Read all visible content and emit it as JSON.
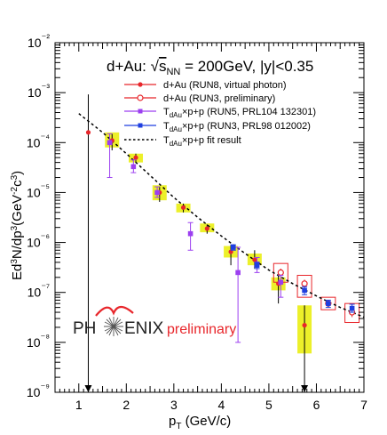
{
  "chart_data": {
    "type": "scatter",
    "title": "d+Au: √s_NN = 200GeV, |y|<0.35",
    "xlabel": "p_T (GeV/c)",
    "ylabel": "Ed³N/dp³(GeV⁻²c³)",
    "xlim": [
      0.5,
      7.0
    ],
    "ylim": [
      1e-09,
      0.01
    ],
    "yscale": "log",
    "x_ticks": [
      "1",
      "2",
      "3",
      "4",
      "5",
      "6",
      "7"
    ],
    "y_ticks": [
      "10⁻⁹",
      "10⁻⁸",
      "10⁻⁷",
      "10⁻⁶",
      "10⁻⁵",
      "10⁻⁴",
      "10⁻³",
      "10⁻²"
    ],
    "legend_position": "top-right",
    "series": [
      {
        "name": "d+Au (RUN8, virtual photon)",
        "color": "#e8262b",
        "marker": "filled-circle",
        "points": [
          {
            "x": 1.2,
            "y": 0.00016,
            "ylow": 1e-09,
            "yhigh": 0.00092,
            "upper_limit": true
          },
          {
            "x": 1.7,
            "y": 0.00011,
            "ylow": 7e-05,
            "yhigh": 0.00015
          },
          {
            "x": 2.2,
            "y": 5e-05,
            "ylow": 4e-05,
            "yhigh": 6e-05
          },
          {
            "x": 2.7,
            "y": 1e-05,
            "ylow": 6.5e-06,
            "yhigh": 1.3e-05
          },
          {
            "x": 3.2,
            "y": 5e-06,
            "ylow": 4e-06,
            "yhigh": 6e-06
          },
          {
            "x": 3.7,
            "y": 1.9e-06,
            "ylow": 1.5e-06,
            "yhigh": 2.3e-06
          },
          {
            "x": 4.2,
            "y": 6.5e-07,
            "ylow": 3.5e-07,
            "yhigh": 9e-07
          },
          {
            "x": 4.7,
            "y": 4.5e-07,
            "ylow": 3e-07,
            "yhigh": 7e-07
          },
          {
            "x": 5.2,
            "y": 1.5e-07,
            "ylow": 6e-08,
            "yhigh": 2.2e-07
          },
          {
            "x": 5.75,
            "y": 2.2e-08,
            "ylow": 1e-09,
            "yhigh": 5.5e-08,
            "upper_limit": true
          }
        ],
        "syst_boxes": [
          {
            "x": 1.7,
            "ylow": 8e-05,
            "yhigh": 0.00016
          },
          {
            "x": 2.2,
            "ylow": 4e-05,
            "yhigh": 6e-05
          },
          {
            "x": 2.7,
            "ylow": 7e-06,
            "yhigh": 1.4e-05
          },
          {
            "x": 3.2,
            "ylow": 4e-06,
            "yhigh": 6e-06
          },
          {
            "x": 3.7,
            "ylow": 1.6e-06,
            "yhigh": 2.4e-06
          },
          {
            "x": 4.2,
            "ylow": 5e-07,
            "yhigh": 8.5e-07
          },
          {
            "x": 4.7,
            "ylow": 3.5e-07,
            "yhigh": 6e-07
          },
          {
            "x": 5.2,
            "ylow": 1.1e-07,
            "yhigh": 2e-07
          },
          {
            "x": 5.75,
            "ylow": 6e-09,
            "yhigh": 5.5e-08
          }
        ]
      },
      {
        "name": "d+Au (RUN3, preliminary)",
        "color": "#e8262b",
        "marker": "open-circle",
        "points": [
          {
            "x": 5.25,
            "y": 2.5e-07,
            "ylow": 2e-07,
            "yhigh": 3e-07
          },
          {
            "x": 5.75,
            "y": 1.5e-07,
            "ylow": 1.2e-07,
            "yhigh": 1.8e-07
          },
          {
            "x": 6.25,
            "y": 6e-08,
            "ylow": 5e-08,
            "yhigh": 7e-08
          },
          {
            "x": 6.75,
            "y": 4e-08,
            "ylow": 3.2e-08,
            "yhigh": 4.8e-08
          }
        ],
        "syst_boxes": [
          {
            "x": 5.25,
            "ylow": 1.6e-07,
            "yhigh": 3.8e-07
          },
          {
            "x": 5.75,
            "ylow": 8e-08,
            "yhigh": 2.2e-07
          },
          {
            "x": 6.25,
            "ylow": 4.5e-08,
            "yhigh": 8e-08
          },
          {
            "x": 6.75,
            "ylow": 2.5e-08,
            "yhigh": 6e-08
          }
        ]
      },
      {
        "name": "T_dAu × p+p (RUN5, PRL104 132301)",
        "color": "#9c3ff0",
        "marker": "filled-square",
        "points": [
          {
            "x": 1.65,
            "y": 0.0001,
            "ylow": 2e-05,
            "yhigh": 0.00015
          },
          {
            "x": 2.15,
            "y": 3.3e-05,
            "ylow": 2.5e-05,
            "yhigh": 4.5e-05
          },
          {
            "x": 2.65,
            "y": 1e-05,
            "ylow": 8e-06,
            "yhigh": 1.3e-05
          },
          {
            "x": 3.35,
            "y": 1.5e-06,
            "ylow": 7e-07,
            "yhigh": 2.5e-06
          },
          {
            "x": 4.35,
            "y": 2.5e-07,
            "ylow": 1e-08,
            "yhigh": 8e-07
          },
          {
            "x": 4.75,
            "y": 3.7e-07,
            "ylow": 2.5e-07,
            "yhigh": 5e-07
          },
          {
            "x": 5.25,
            "y": 1.6e-07,
            "ylow": 8e-08,
            "yhigh": 2.2e-07
          }
        ]
      },
      {
        "name": "T_dAu × p+p (RUN3, PRL98 012002)",
        "color": "#1f3fe0",
        "marker": "filled-square",
        "points": [
          {
            "x": 5.75,
            "y": 1.1e-07,
            "ylow": 9e-08,
            "yhigh": 1.3e-07
          },
          {
            "x": 6.25,
            "y": 6e-08,
            "ylow": 5e-08,
            "yhigh": 7e-08
          },
          {
            "x": 6.75,
            "y": 4.8e-08,
            "ylow": 4e-08,
            "yhigh": 5.8e-08
          },
          {
            "x": 4.75,
            "y": 3.5e-07,
            "ylow": 3e-07,
            "yhigh": 4e-07
          },
          {
            "x": 4.25,
            "y": 8e-07,
            "ylow": 7e-07,
            "yhigh": 9e-07
          }
        ]
      },
      {
        "name": "T_dAu × p+p fit result",
        "color": "#000000",
        "marker": "dashed-line",
        "curve": [
          {
            "x": 1.0,
            "y": 0.00038
          },
          {
            "x": 1.5,
            "y": 0.00016
          },
          {
            "x": 2.0,
            "y": 6e-05
          },
          {
            "x": 2.5,
            "y": 2.2e-05
          },
          {
            "x": 3.0,
            "y": 8e-06
          },
          {
            "x": 3.5,
            "y": 3.2e-06
          },
          {
            "x": 4.0,
            "y": 1.35e-06
          },
          {
            "x": 4.5,
            "y": 6e-07
          },
          {
            "x": 5.0,
            "y": 2.8e-07
          },
          {
            "x": 5.5,
            "y": 1.5e-07
          },
          {
            "x": 6.0,
            "y": 8.5e-08
          },
          {
            "x": 6.5,
            "y": 5e-08
          },
          {
            "x": 7.0,
            "y": 3.2e-08
          }
        ]
      }
    ]
  },
  "legend": {
    "items": [
      {
        "label": "d+Au (RUN8, virtual photon)"
      },
      {
        "label": "d+Au (RUN3, preliminary)"
      },
      {
        "label": "T",
        "sub": "dAu",
        "rest": "×p+p (RUN5, PRL104 132301)"
      },
      {
        "label": "T",
        "sub": "dAu",
        "rest": "×p+p (RUN3, PRL98 012002)"
      },
      {
        "label": "T",
        "sub": "dAu",
        "rest": "×p+p fit result"
      }
    ]
  },
  "title_parts": {
    "pre": "d+Au: ",
    "s": "s",
    "nn": "NN",
    "post": " = 200GeV, |y|<0.35"
  },
  "axis": {
    "xlabel_main": "p",
    "xlabel_sub": "T",
    "xlabel_rest": " (GeV/c)",
    "ylabel_a": "Ed",
    "ylabel_b": "3",
    "ylabel_c": "N/dp",
    "ylabel_d": "3",
    "ylabel_e": "(GeV",
    "ylabel_f": "-2",
    "ylabel_g": "c",
    "ylabel_h": "3",
    "ylabel_i": ")"
  },
  "logo": {
    "left": "PH",
    "right": "ENIX",
    "sub": "preliminary"
  },
  "colors": {
    "highlight": "#ecf02a",
    "red": "#e8262b",
    "purple": "#9c3ff0",
    "blue": "#1f3fe0"
  }
}
